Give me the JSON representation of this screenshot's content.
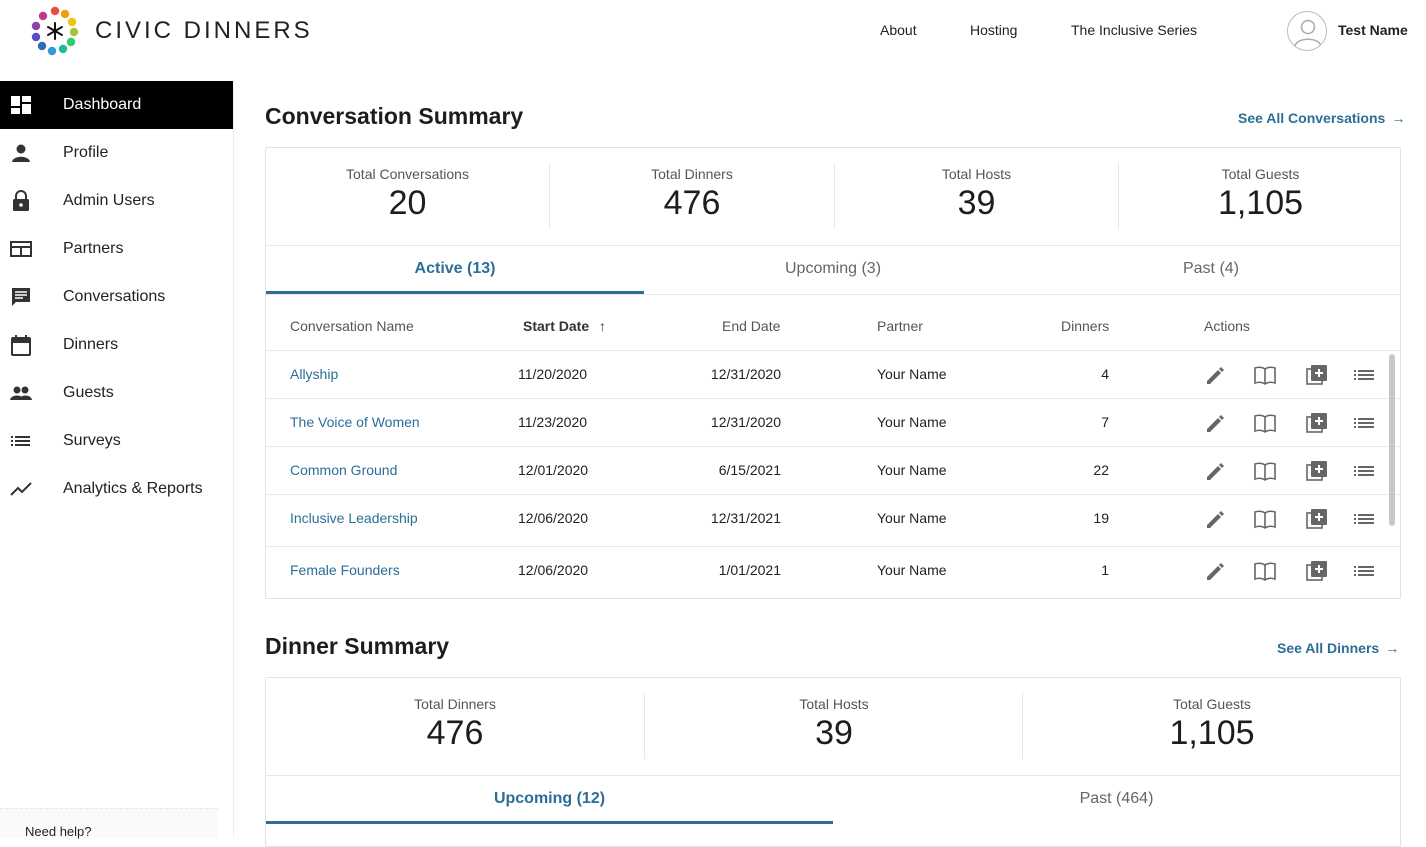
{
  "header": {
    "brand": "CIVIC DINNERS",
    "nav": [
      {
        "label": "About"
      },
      {
        "label": "Hosting"
      },
      {
        "label": "The Inclusive Series"
      }
    ],
    "user_name": "Test Name"
  },
  "sidebar": {
    "items": [
      {
        "label": "Dashboard",
        "icon": "dashboard-icon"
      },
      {
        "label": "Profile",
        "icon": "person-icon"
      },
      {
        "label": "Admin Users",
        "icon": "lock-icon"
      },
      {
        "label": "Partners",
        "icon": "partners-icon"
      },
      {
        "label": "Conversations",
        "icon": "chat-icon"
      },
      {
        "label": "Dinners",
        "icon": "calendar-icon"
      },
      {
        "label": "Guests",
        "icon": "people-icon"
      },
      {
        "label": "Surveys",
        "icon": "list-icon"
      },
      {
        "label": "Analytics & Reports",
        "icon": "trend-icon"
      }
    ],
    "help": "Need help?"
  },
  "conversation_summary": {
    "title": "Conversation Summary",
    "see_all": "See All Conversations",
    "stats": [
      {
        "label": "Total Conversations",
        "value": "20"
      },
      {
        "label": "Total Dinners",
        "value": "476"
      },
      {
        "label": "Total Hosts",
        "value": "39"
      },
      {
        "label": "Total Guests",
        "value": "1,105"
      }
    ],
    "tabs": [
      {
        "label": "Active (13)"
      },
      {
        "label": "Upcoming (3)"
      },
      {
        "label": "Past (4)"
      }
    ],
    "columns": {
      "name": "Conversation Name",
      "start": "Start Date",
      "end": "End Date",
      "partner": "Partner",
      "dinners": "Dinners",
      "actions": "Actions"
    },
    "rows": [
      {
        "name": "Allyship",
        "start": "11/20/2020",
        "end": "12/31/2020",
        "partner": "Your Name",
        "dinners": "4"
      },
      {
        "name": "The Voice of Women",
        "start": "11/23/2020",
        "end": "12/31/2020",
        "partner": "Your Name",
        "dinners": "7"
      },
      {
        "name": "Common Ground",
        "start": "12/01/2020",
        "end": "6/15/2021",
        "partner": "Your Name",
        "dinners": "22"
      },
      {
        "name": "Inclusive Leadership",
        "start": "12/06/2020",
        "end": "12/31/2021",
        "partner": "Your Name",
        "dinners": "19"
      },
      {
        "name": "Female Founders",
        "start": "12/06/2020",
        "end": "1/01/2021",
        "partner": "Your Name",
        "dinners": "1"
      }
    ]
  },
  "dinner_summary": {
    "title": "Dinner Summary",
    "see_all": "See All Dinners",
    "stats": [
      {
        "label": "Total Dinners",
        "value": "476"
      },
      {
        "label": "Total Hosts",
        "value": "39"
      },
      {
        "label": "Total Guests",
        "value": "1,105"
      }
    ],
    "tabs": [
      {
        "label": "Upcoming (12)"
      },
      {
        "label": "Past (464)"
      }
    ]
  },
  "colors": {
    "accent": "#2b6e97",
    "sidebar_active_bg": "#000000"
  }
}
